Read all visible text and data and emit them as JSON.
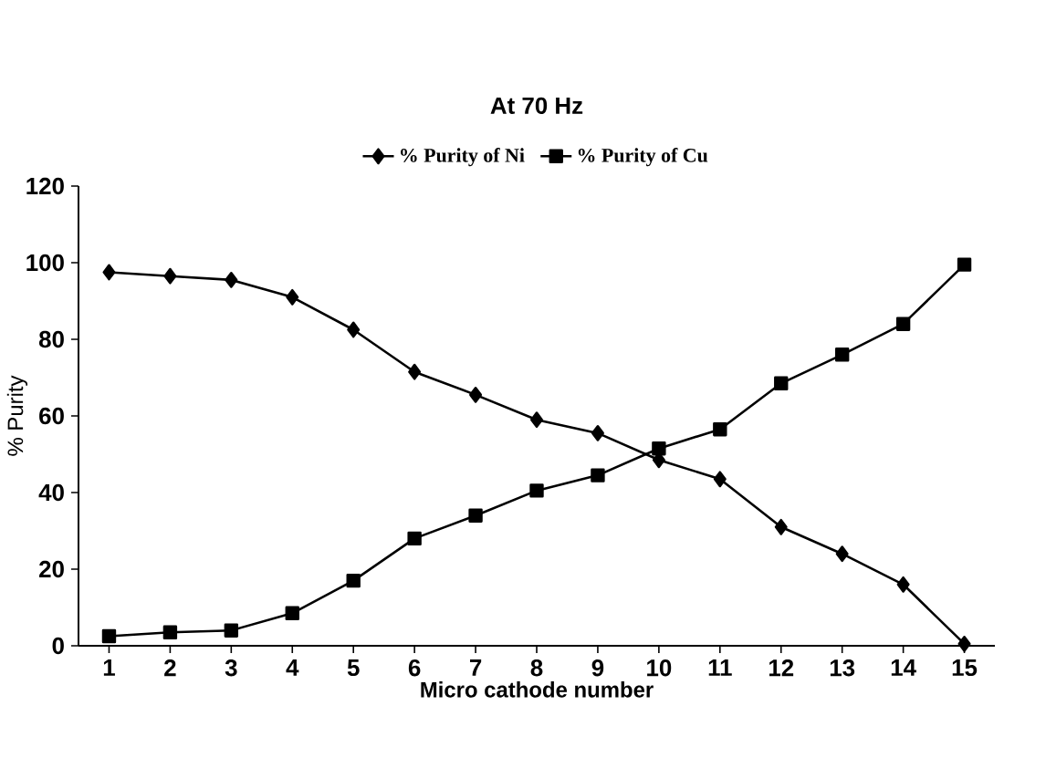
{
  "chart_data": {
    "type": "line",
    "title": "At 70 Hz",
    "xlabel": "Micro cathode number",
    "ylabel": "% Purity",
    "categories": [
      "1",
      "2",
      "3",
      "4",
      "5",
      "6",
      "7",
      "8",
      "9",
      "10",
      "11",
      "12",
      "13",
      "14",
      "15"
    ],
    "series": [
      {
        "name": "% Purity of Ni",
        "color": "#000000",
        "marker": "diamond",
        "values": [
          97.5,
          96.5,
          95.5,
          91,
          82.5,
          71.5,
          65.5,
          59,
          55.5,
          48.5,
          43.5,
          31,
          24,
          16,
          0.5
        ]
      },
      {
        "name": "% Purity of Cu",
        "color": "#000000",
        "marker": "square",
        "values": [
          2.5,
          3.5,
          4,
          8.5,
          17,
          28,
          34,
          40.5,
          44.5,
          51.5,
          56.5,
          68.5,
          76,
          84,
          99.5
        ]
      }
    ],
    "ylim": [
      0,
      120
    ],
    "yticks": [
      0,
      20,
      40,
      60,
      80,
      100,
      120
    ],
    "legend": "top",
    "grid": false,
    "line_style": "solid"
  }
}
